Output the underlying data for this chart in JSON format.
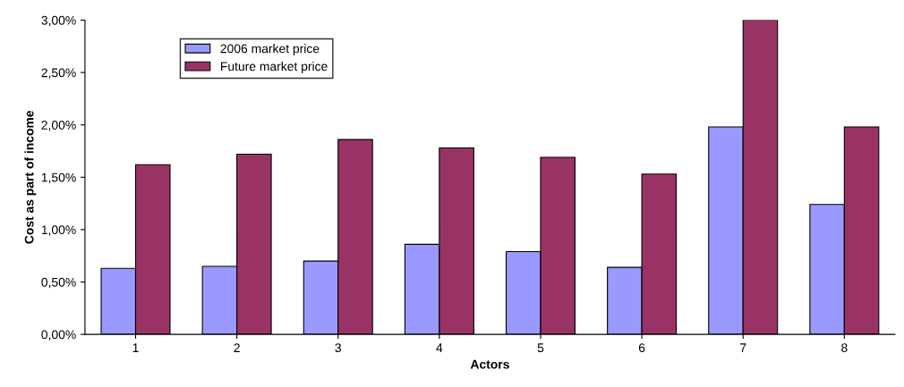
{
  "chart_data": {
    "type": "bar",
    "xlabel": "Actors",
    "ylabel": "Cost as part of income",
    "categories": [
      "1",
      "2",
      "3",
      "4",
      "5",
      "6",
      "7",
      "8"
    ],
    "series": [
      {
        "name": "2006 market price",
        "color": "#9999ff",
        "values": [
          0.63,
          0.65,
          0.7,
          0.86,
          0.79,
          0.64,
          1.98,
          1.24
        ]
      },
      {
        "name": "Future market price",
        "color": "#993366",
        "values": [
          1.62,
          1.72,
          1.86,
          1.78,
          1.69,
          1.53,
          3.0,
          1.98
        ]
      }
    ],
    "ylim": [
      0,
      3
    ],
    "yticks": [
      {
        "value": 0,
        "label": "0,00%"
      },
      {
        "value": 0.5,
        "label": "0,50%"
      },
      {
        "value": 1,
        "label": "1,00%"
      },
      {
        "value": 1.5,
        "label": "1,50%"
      },
      {
        "value": 2,
        "label": "2,00%"
      },
      {
        "value": 2.5,
        "label": "2,50%"
      },
      {
        "value": 3,
        "label": "3,00%"
      }
    ],
    "grid": false,
    "legend": "top left"
  }
}
